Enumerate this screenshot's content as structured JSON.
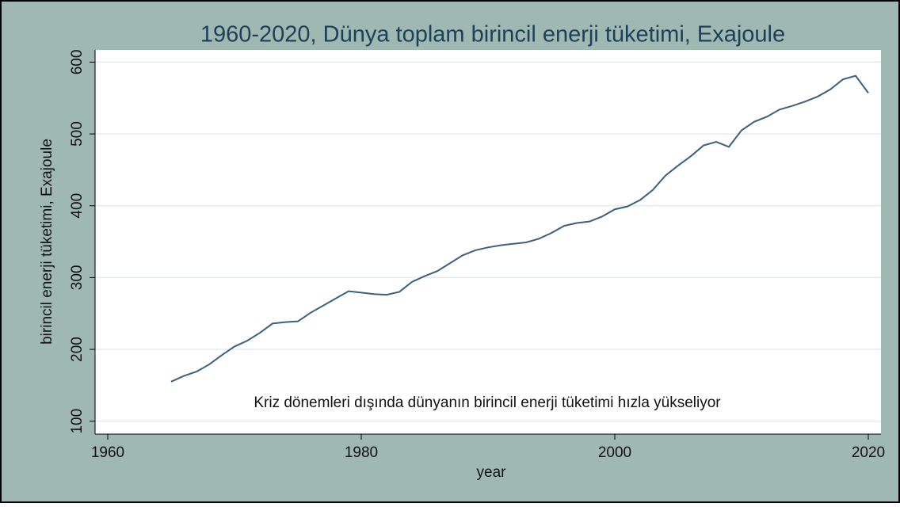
{
  "chart_data": {
    "type": "line",
    "title": "1960-2020, Dünya toplam birincil enerji tüketimi, Exajoule",
    "x_label": "year",
    "y_label": "birincil enerji tüketimi, Exajoule",
    "annotation": "Kriz dönemleri dışında dünyanın birincil enerji tüketimi hızla yükseliyor",
    "x": [
      1965,
      1966,
      1967,
      1968,
      1969,
      1970,
      1971,
      1972,
      1973,
      1974,
      1975,
      1976,
      1977,
      1978,
      1979,
      1980,
      1981,
      1982,
      1983,
      1984,
      1985,
      1986,
      1987,
      1988,
      1989,
      1990,
      1991,
      1992,
      1993,
      1994,
      1995,
      1996,
      1997,
      1998,
      1999,
      2000,
      2001,
      2002,
      2003,
      2004,
      2005,
      2006,
      2007,
      2008,
      2009,
      2010,
      2011,
      2012,
      2013,
      2014,
      2015,
      2016,
      2017,
      2018,
      2019,
      2020
    ],
    "series": [
      {
        "name": "birincil enerji tüketimi",
        "color": "#3e5f7d",
        "values": [
          155,
          163,
          169,
          179,
          192,
          204,
          212,
          223,
          236,
          238,
          239,
          251,
          261,
          271,
          281,
          279,
          277,
          276,
          280,
          294,
          302,
          309,
          320,
          331,
          338,
          342,
          345,
          347,
          349,
          354,
          362,
          372,
          376,
          378,
          385,
          395,
          399,
          408,
          422,
          442,
          456,
          469,
          484,
          489,
          482,
          505,
          517,
          524,
          534,
          539,
          545,
          552,
          562,
          576,
          581,
          557
        ]
      }
    ],
    "xlim": [
      1959,
      2021
    ],
    "xticks": [
      1960,
      1980,
      2000,
      2020
    ],
    "ylim": [
      82,
      617
    ],
    "yticks": [
      100,
      200,
      300,
      400,
      500,
      600
    ],
    "grid": true
  }
}
